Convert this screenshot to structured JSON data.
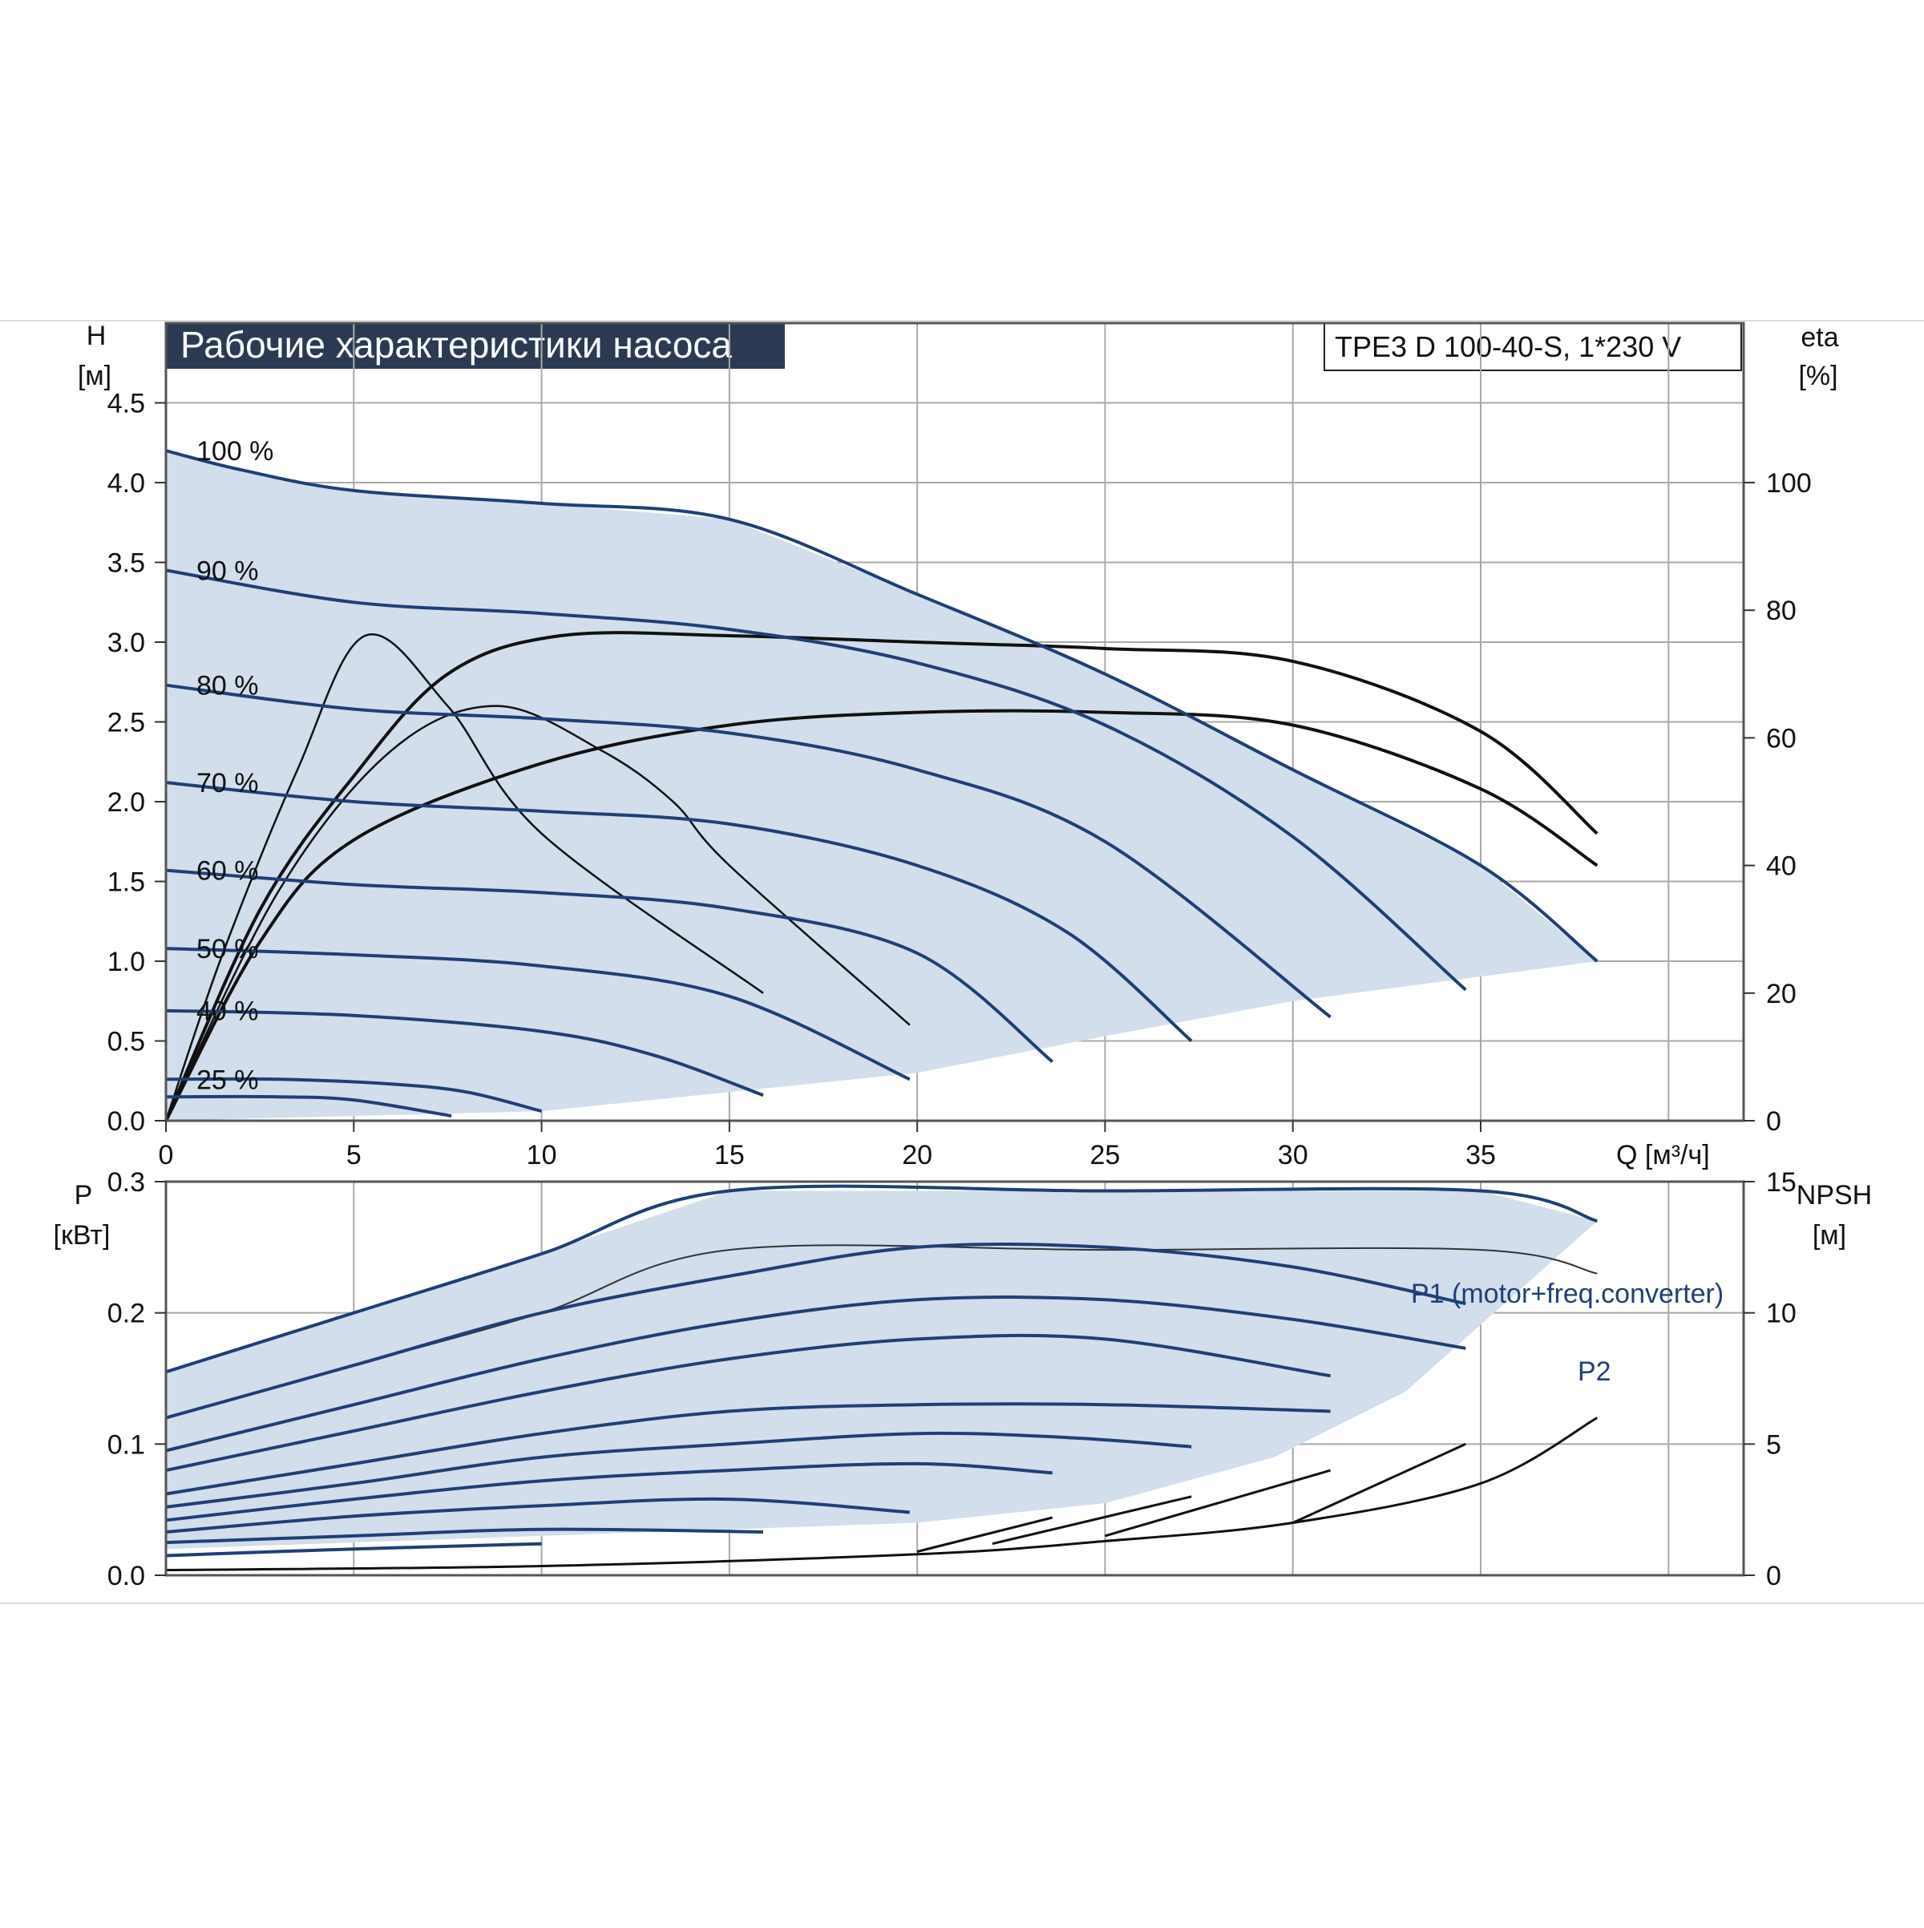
{
  "header": {
    "title": "Рабочие характеристики насоса",
    "model": "TPE3 D 100-40-S, 1*230 V"
  },
  "colors": {
    "curve_blue": "#1f3f76",
    "fill_blue": "#d2deec",
    "title_bg": "#2b3a52",
    "grid": "#a9a9a9",
    "black": "#111111"
  },
  "chart_data": [
    {
      "id": "head",
      "type": "line",
      "ylabel_main": "H",
      "ylabel_unit": "[м]",
      "y2label_main": "eta",
      "y2label_unit": "[%]",
      "xlabel": "Q [м³/ч]",
      "xlim": [
        0,
        42
      ],
      "ylim": [
        0,
        5
      ],
      "y2lim": [
        0,
        125
      ],
      "xticks": [
        0,
        5,
        10,
        15,
        20,
        25,
        30,
        35
      ],
      "yticks": [
        0.0,
        0.5,
        1.0,
        1.5,
        2.0,
        2.5,
        3.0,
        3.5,
        4.0,
        4.5
      ],
      "y2ticks": [
        0,
        20,
        40,
        60,
        80,
        100
      ],
      "grid": true,
      "operating_area": [
        [
          0,
          4.2
        ],
        [
          2,
          4.08
        ],
        [
          5,
          3.95
        ],
        [
          10,
          3.87
        ],
        [
          15,
          3.77
        ],
        [
          20,
          3.3
        ],
        [
          25,
          2.8
        ],
        [
          30,
          2.2
        ],
        [
          35,
          1.6
        ],
        [
          38.1,
          1.0
        ],
        [
          30,
          0.75
        ],
        [
          25,
          0.53
        ],
        [
          20,
          0.3
        ],
        [
          15,
          0.18
        ],
        [
          10,
          0.06
        ],
        [
          0,
          0.0
        ]
      ],
      "speed_curves": [
        {
          "name": "100 %",
          "points": [
            [
              0,
              4.2
            ],
            [
              2,
              4.08
            ],
            [
              5,
              3.95
            ],
            [
              10,
              3.87
            ],
            [
              15,
              3.77
            ],
            [
              20,
              3.3
            ],
            [
              25,
              2.8
            ],
            [
              30,
              2.2
            ],
            [
              35,
              1.6
            ],
            [
              38.1,
              1.0
            ]
          ]
        },
        {
          "name": "90 %",
          "points": [
            [
              0,
              3.45
            ],
            [
              5,
              3.25
            ],
            [
              10,
              3.18
            ],
            [
              15,
              3.08
            ],
            [
              20,
              2.87
            ],
            [
              25,
              2.48
            ],
            [
              30,
              1.78
            ],
            [
              34.6,
              0.82
            ]
          ]
        },
        {
          "name": "80 %",
          "points": [
            [
              0,
              2.73
            ],
            [
              5,
              2.58
            ],
            [
              10,
              2.52
            ],
            [
              15,
              2.43
            ],
            [
              20,
              2.2
            ],
            [
              25,
              1.75
            ],
            [
              31,
              0.65
            ]
          ]
        },
        {
          "name": "70 %",
          "points": [
            [
              0,
              2.12
            ],
            [
              5,
              2.0
            ],
            [
              10,
              1.94
            ],
            [
              15,
              1.86
            ],
            [
              20,
              1.6
            ],
            [
              24,
              1.18
            ],
            [
              27.3,
              0.5
            ]
          ]
        },
        {
          "name": "60 %",
          "points": [
            [
              0,
              1.57
            ],
            [
              5,
              1.48
            ],
            [
              10,
              1.43
            ],
            [
              15,
              1.33
            ],
            [
              20,
              1.05
            ],
            [
              23.6,
              0.37
            ]
          ]
        },
        {
          "name": "50 %",
          "points": [
            [
              0,
              1.08
            ],
            [
              5,
              1.04
            ],
            [
              10,
              0.97
            ],
            [
              15,
              0.78
            ],
            [
              19.8,
              0.26
            ]
          ]
        },
        {
          "name": "40 %",
          "points": [
            [
              0,
              0.69
            ],
            [
              5,
              0.66
            ],
            [
              10,
              0.56
            ],
            [
              13,
              0.41
            ],
            [
              15.9,
              0.16
            ]
          ]
        },
        {
          "name": "25 %",
          "points": [
            [
              0,
              0.26
            ],
            [
              3,
              0.26
            ],
            [
              6,
              0.23
            ],
            [
              8,
              0.18
            ],
            [
              10,
              0.06
            ]
          ]
        },
        {
          "name": "",
          "points": [
            [
              0,
              0.15
            ],
            [
              3,
              0.15
            ],
            [
              5,
              0.13
            ],
            [
              7.6,
              0.03
            ]
          ]
        }
      ],
      "efficiency_curves": [
        [
          [
            0,
            0
          ],
          [
            2.5,
            33
          ],
          [
            5,
            54
          ],
          [
            7.5,
            70
          ],
          [
            10.5,
            76
          ],
          [
            15,
            76
          ],
          [
            20,
            75
          ],
          [
            25,
            74
          ],
          [
            30,
            72
          ],
          [
            35,
            61
          ],
          [
            38.1,
            45
          ]
        ],
        [
          [
            0,
            0
          ],
          [
            2.5,
            28
          ],
          [
            5,
            44
          ],
          [
            10,
            56
          ],
          [
            15,
            62
          ],
          [
            20,
            64
          ],
          [
            25,
            64
          ],
          [
            30,
            62
          ],
          [
            35,
            52
          ],
          [
            38.1,
            40
          ]
        ],
        [
          [
            0,
            0
          ],
          [
            1.5,
            26
          ],
          [
            3.5,
            55
          ],
          [
            5.3,
            76
          ],
          [
            7.5,
            65
          ],
          [
            10,
            45
          ],
          [
            15.9,
            20
          ]
        ],
        [
          [
            0,
            0
          ],
          [
            3,
            36
          ],
          [
            6,
            58
          ],
          [
            8.8,
            65
          ],
          [
            11.6,
            58
          ],
          [
            13.5,
            50
          ],
          [
            15,
            40
          ],
          [
            19.8,
            15
          ]
        ]
      ],
      "efficiency_labels": []
    },
    {
      "id": "power",
      "type": "line",
      "ylabel_main": "P",
      "ylabel_unit": "[кВт]",
      "y2label_main": "NPSH",
      "y2label_unit": "[м]",
      "xlim": [
        0,
        42
      ],
      "ylim": [
        0,
        0.3
      ],
      "y2lim": [
        0,
        15
      ],
      "yticks": [
        0.0,
        0.1,
        0.2,
        0.3
      ],
      "y2ticks": [
        0,
        5,
        10,
        15
      ],
      "grid": true,
      "power_area": [
        [
          0,
          0.155
        ],
        [
          5,
          0.2
        ],
        [
          10,
          0.245
        ],
        [
          15,
          0.293
        ],
        [
          20,
          0.293
        ],
        [
          25,
          0.293
        ],
        [
          30,
          0.293
        ],
        [
          35,
          0.293
        ],
        [
          38.1,
          0.27
        ],
        [
          33,
          0.14
        ],
        [
          29.5,
          0.09
        ],
        [
          25,
          0.055
        ],
        [
          20,
          0.04
        ],
        [
          15,
          0.035
        ],
        [
          10,
          0.03
        ],
        [
          0,
          0.02
        ]
      ],
      "p1_label": "P1 (motor+freq.converter)",
      "p2_label": "P2",
      "p1_curve": [
        [
          0,
          0.155
        ],
        [
          5,
          0.2
        ],
        [
          10,
          0.245
        ],
        [
          15,
          0.293
        ],
        [
          25,
          0.293
        ],
        [
          35,
          0.293
        ],
        [
          38.1,
          0.27
        ]
      ],
      "p2_curve": [
        [
          0,
          0.12
        ],
        [
          5,
          0.16
        ],
        [
          10,
          0.2
        ],
        [
          15,
          0.248
        ],
        [
          25,
          0.248
        ],
        [
          35,
          0.248
        ],
        [
          38.1,
          0.23
        ]
      ],
      "power_curves": [
        [
          [
            0,
            0.12
          ],
          [
            5,
            0.16
          ],
          [
            10,
            0.2
          ],
          [
            15,
            0.228
          ],
          [
            20,
            0.25
          ],
          [
            25,
            0.25
          ],
          [
            30,
            0.235
          ],
          [
            34.6,
            0.207
          ]
        ],
        [
          [
            0,
            0.095
          ],
          [
            5,
            0.13
          ],
          [
            10,
            0.165
          ],
          [
            15,
            0.193
          ],
          [
            20,
            0.21
          ],
          [
            25,
            0.21
          ],
          [
            30,
            0.195
          ],
          [
            34.6,
            0.173
          ]
        ],
        [
          [
            0,
            0.08
          ],
          [
            5,
            0.11
          ],
          [
            10,
            0.14
          ],
          [
            15,
            0.165
          ],
          [
            20,
            0.18
          ],
          [
            25,
            0.18
          ],
          [
            31,
            0.152
          ]
        ],
        [
          [
            0,
            0.062
          ],
          [
            5,
            0.085
          ],
          [
            10,
            0.108
          ],
          [
            15,
            0.125
          ],
          [
            20,
            0.13
          ],
          [
            25,
            0.13
          ],
          [
            31,
            0.125
          ]
        ],
        [
          [
            0,
            0.052
          ],
          [
            5,
            0.07
          ],
          [
            10,
            0.09
          ],
          [
            15,
            0.1
          ],
          [
            20,
            0.108
          ],
          [
            24,
            0.105
          ],
          [
            27.3,
            0.098
          ]
        ],
        [
          [
            0,
            0.042
          ],
          [
            5,
            0.058
          ],
          [
            10,
            0.072
          ],
          [
            15,
            0.08
          ],
          [
            20,
            0.085
          ],
          [
            23.6,
            0.078
          ]
        ],
        [
          [
            0,
            0.033
          ],
          [
            5,
            0.045
          ],
          [
            10,
            0.053
          ],
          [
            15,
            0.058
          ],
          [
            19.8,
            0.048
          ]
        ],
        [
          [
            0,
            0.025
          ],
          [
            5,
            0.03
          ],
          [
            10,
            0.035
          ],
          [
            15.9,
            0.033
          ]
        ],
        [
          [
            0,
            0.015
          ],
          [
            5,
            0.02
          ],
          [
            10,
            0.024
          ]
        ]
      ],
      "npsh_curves": [
        [
          [
            0,
            0.2
          ],
          [
            10,
            0.35
          ],
          [
            20,
            0.8
          ],
          [
            25,
            1.3
          ],
          [
            30,
            2.0
          ],
          [
            35,
            3.5
          ],
          [
            38.1,
            6.0
          ]
        ],
        [
          [
            30,
            2.0
          ],
          [
            34.6,
            5.0
          ]
        ],
        [
          [
            25,
            1.5
          ],
          [
            31,
            4.0
          ]
        ],
        [
          [
            22,
            1.2
          ],
          [
            27.3,
            3.0
          ]
        ],
        [
          [
            20,
            0.9
          ],
          [
            23.6,
            2.2
          ]
        ]
      ]
    }
  ]
}
